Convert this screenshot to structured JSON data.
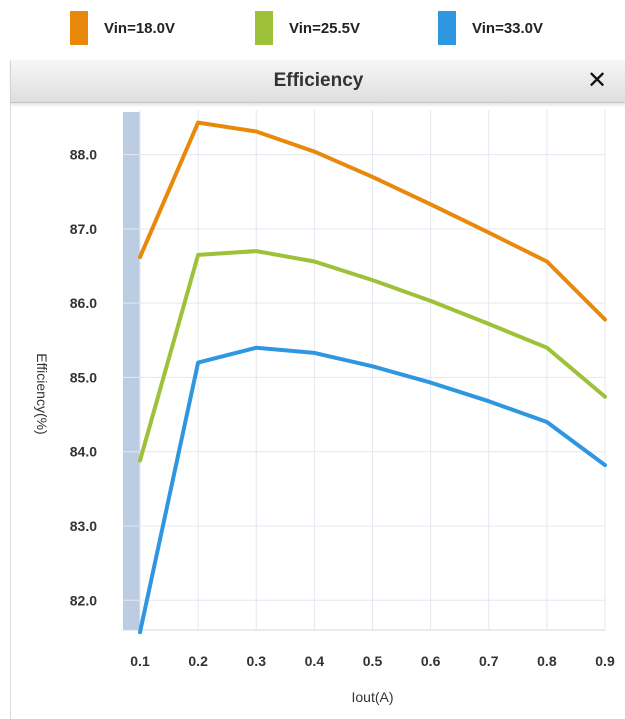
{
  "legend": {
    "items": [
      {
        "label": "Vin=18.0V",
        "color": "#e8890c"
      },
      {
        "label": "Vin=25.5V",
        "color": "#9dc23a"
      },
      {
        "label": "Vin=33.0V",
        "color": "#2f97e0"
      }
    ]
  },
  "window": {
    "title": "Efficiency",
    "close_label": "✕"
  },
  "chart_data": {
    "type": "line",
    "title": "Efficiency",
    "xlabel": "Iout(A)",
    "ylabel": "Efficiency(%)",
    "x": [
      0.1,
      0.2,
      0.3,
      0.4,
      0.5,
      0.6,
      0.7,
      0.8,
      0.9
    ],
    "x_ticks": [
      "0.1",
      "0.2",
      "0.3",
      "0.4",
      "0.5",
      "0.6",
      "0.7",
      "0.8",
      "0.9"
    ],
    "y_ticks": [
      "82.0",
      "83.0",
      "84.0",
      "85.0",
      "86.0",
      "87.0",
      "88.0"
    ],
    "xlim": [
      0.1,
      0.9
    ],
    "ylim": [
      81.6,
      88.6
    ],
    "grid": true,
    "legend_position": "top",
    "series": [
      {
        "name": "Vin=18.0V",
        "color": "#e8890c",
        "values": [
          86.62,
          88.43,
          88.31,
          88.04,
          87.7,
          87.33,
          86.95,
          86.56,
          85.78
        ]
      },
      {
        "name": "Vin=25.5V",
        "color": "#9dc23a",
        "values": [
          83.88,
          86.65,
          86.7,
          86.56,
          86.31,
          86.03,
          85.72,
          85.4,
          84.74
        ]
      },
      {
        "name": "Vin=33.0V",
        "color": "#2f97e0",
        "values": [
          81.57,
          85.2,
          85.4,
          85.33,
          85.15,
          84.93,
          84.68,
          84.4,
          83.82
        ]
      }
    ]
  }
}
